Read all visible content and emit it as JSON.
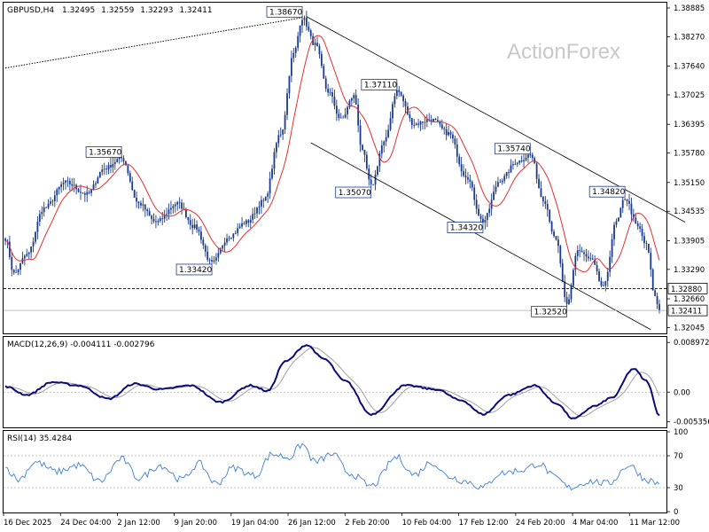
{
  "chart_data": {
    "type": "candlestick",
    "header": {
      "symbol": "GBPUSD,H4",
      "open": "1.32495",
      "high": "1.32559",
      "low": "1.32293",
      "close": "1.32411"
    },
    "watermark": "ActionForex",
    "price_axis": {
      "ticks": [
        "1.38885",
        "1.38270",
        "1.37640",
        "1.37025",
        "1.36395",
        "1.35780",
        "1.35150",
        "1.34535",
        "1.33905",
        "1.33290",
        "1.32660",
        "1.32045"
      ],
      "tick_values": [
        1.38885,
        1.3827,
        1.3764,
        1.37025,
        1.36395,
        1.3578,
        1.3515,
        1.34535,
        1.33905,
        1.3329,
        1.3266,
        1.32045
      ],
      "ylim": [
        1.3192,
        1.3898
      ]
    },
    "time_axis": {
      "labels": [
        "16 Dec 2025",
        "24 Dec 04:00",
        "2 Jan 12:00",
        "9 Jan 20:00",
        "19 Jan 04:00",
        "26 Jan 12:00",
        "2 Feb 20:00",
        "10 Feb 04:00",
        "17 Feb 12:00",
        "24 Feb 20:00",
        "4 Mar 04:00",
        "11 Mar 12:00"
      ]
    },
    "price_series_key_points": [
      {
        "i": 0,
        "v": 1.3395
      },
      {
        "i": 4,
        "v": 1.332
      },
      {
        "i": 10,
        "v": 1.336
      },
      {
        "i": 18,
        "v": 1.346
      },
      {
        "i": 28,
        "v": 1.3515
      },
      {
        "i": 38,
        "v": 1.349
      },
      {
        "i": 46,
        "v": 1.3545
      },
      {
        "i": 54,
        "v": 1.3567
      },
      {
        "i": 62,
        "v": 1.347
      },
      {
        "i": 70,
        "v": 1.343
      },
      {
        "i": 80,
        "v": 1.347
      },
      {
        "i": 88,
        "v": 1.342
      },
      {
        "i": 96,
        "v": 1.3342
      },
      {
        "i": 104,
        "v": 1.34
      },
      {
        "i": 112,
        "v": 1.343
      },
      {
        "i": 120,
        "v": 1.3475
      },
      {
        "i": 128,
        "v": 1.362
      },
      {
        "i": 134,
        "v": 1.379
      },
      {
        "i": 138,
        "v": 1.3867
      },
      {
        "i": 144,
        "v": 1.381
      },
      {
        "i": 150,
        "v": 1.371
      },
      {
        "i": 156,
        "v": 1.365
      },
      {
        "i": 162,
        "v": 1.37
      },
      {
        "i": 166,
        "v": 1.358
      },
      {
        "i": 170,
        "v": 1.3507
      },
      {
        "i": 176,
        "v": 1.36
      },
      {
        "i": 182,
        "v": 1.3711
      },
      {
        "i": 190,
        "v": 1.364
      },
      {
        "i": 198,
        "v": 1.365
      },
      {
        "i": 206,
        "v": 1.362
      },
      {
        "i": 214,
        "v": 1.353
      },
      {
        "i": 222,
        "v": 1.3432
      },
      {
        "i": 230,
        "v": 1.352
      },
      {
        "i": 238,
        "v": 1.356
      },
      {
        "i": 244,
        "v": 1.3574
      },
      {
        "i": 250,
        "v": 1.348
      },
      {
        "i": 256,
        "v": 1.339
      },
      {
        "i": 261,
        "v": 1.3252
      },
      {
        "i": 266,
        "v": 1.337
      },
      {
        "i": 272,
        "v": 1.335
      },
      {
        "i": 278,
        "v": 1.329
      },
      {
        "i": 284,
        "v": 1.343
      },
      {
        "i": 288,
        "v": 1.3482
      },
      {
        "i": 294,
        "v": 1.342
      },
      {
        "i": 298,
        "v": 1.338
      },
      {
        "i": 302,
        "v": 1.327
      },
      {
        "i": 304,
        "v": 1.3241
      }
    ],
    "moving_average_color": "#e03030",
    "candle_color": "#1a3a8c",
    "pivot_labels": [
      {
        "text": "1.38670",
        "i": 138,
        "v": 1.3867,
        "pos": "above"
      },
      {
        "text": "1.35670",
        "i": 54,
        "v": 1.3567,
        "pos": "above"
      },
      {
        "text": "1.37110",
        "i": 182,
        "v": 1.3711,
        "pos": "above"
      },
      {
        "text": "1.35740",
        "i": 244,
        "v": 1.3574,
        "pos": "above"
      },
      {
        "text": "1.34820",
        "i": 288,
        "v": 1.3482,
        "pos": "above"
      },
      {
        "text": "1.33420",
        "i": 96,
        "v": 1.3342,
        "pos": "below"
      },
      {
        "text": "1.35070",
        "i": 170,
        "v": 1.3507,
        "pos": "below"
      },
      {
        "text": "1.34320",
        "i": 222,
        "v": 1.3432,
        "pos": "below"
      },
      {
        "text": "1.32520",
        "i": 261,
        "v": 1.3252,
        "pos": "below"
      }
    ],
    "price_lines": [
      {
        "label": "1.32880",
        "value": 1.3288,
        "style": "dashed"
      },
      {
        "label": "1.32411",
        "value": 1.32411,
        "style": "solid"
      }
    ],
    "channel_lines": [
      {
        "from": {
          "i": 140,
          "v": 1.387
        },
        "to": {
          "i": 316,
          "v": 1.343
        }
      },
      {
        "from": {
          "i": 142,
          "v": 1.36
        },
        "to": {
          "i": 300,
          "v": 1.32
        }
      }
    ],
    "trend_line": {
      "from": {
        "i": 0,
        "v": 1.376
      },
      "to": {
        "i": 138,
        "v": 1.3868
      }
    },
    "macd": {
      "label": "MACD(12,26,9) -0.004111 -0.002796",
      "ticks": [
        "0.008972",
        "0.00",
        "-0.005356"
      ],
      "tick_values": [
        0.008972,
        0.0,
        -0.005356
      ],
      "ylim": [
        -0.0062,
        0.0098
      ],
      "key_points": [
        {
          "i": 0,
          "v": 0.001
        },
        {
          "i": 10,
          "v": -0.0005
        },
        {
          "i": 22,
          "v": 0.0018
        },
        {
          "i": 34,
          "v": 0.0012
        },
        {
          "i": 48,
          "v": -0.0012
        },
        {
          "i": 60,
          "v": 0.0015
        },
        {
          "i": 72,
          "v": 0.0005
        },
        {
          "i": 86,
          "v": 0.0012
        },
        {
          "i": 100,
          "v": -0.0018
        },
        {
          "i": 114,
          "v": 0.0012
        },
        {
          "i": 122,
          "v": 0.0002
        },
        {
          "i": 130,
          "v": 0.0055
        },
        {
          "i": 140,
          "v": 0.0085
        },
        {
          "i": 148,
          "v": 0.006
        },
        {
          "i": 158,
          "v": 0.002
        },
        {
          "i": 170,
          "v": -0.004
        },
        {
          "i": 186,
          "v": 0.0012
        },
        {
          "i": 200,
          "v": 0.0005
        },
        {
          "i": 212,
          "v": -0.0015
        },
        {
          "i": 222,
          "v": -0.004
        },
        {
          "i": 234,
          "v": -0.0005
        },
        {
          "i": 246,
          "v": 0.0012
        },
        {
          "i": 256,
          "v": -0.002
        },
        {
          "i": 264,
          "v": -0.0048
        },
        {
          "i": 274,
          "v": -0.0025
        },
        {
          "i": 282,
          "v": -0.001
        },
        {
          "i": 292,
          "v": 0.0042
        },
        {
          "i": 298,
          "v": 0.002
        },
        {
          "i": 304,
          "v": -0.0041
        }
      ],
      "macd_color": "#0a0a7a",
      "signal_color": "#a0a0a0"
    },
    "rsi": {
      "label": "RSI(14) 35.4284",
      "ticks": [
        "100",
        "70",
        "30",
        "0"
      ],
      "tick_values": [
        100,
        70,
        30,
        0
      ],
      "ylim": [
        0,
        100
      ],
      "levels": [
        70,
        30
      ],
      "key_points": [
        {
          "i": 0,
          "v": 55
        },
        {
          "i": 6,
          "v": 40
        },
        {
          "i": 14,
          "v": 62
        },
        {
          "i": 24,
          "v": 50
        },
        {
          "i": 34,
          "v": 58
        },
        {
          "i": 44,
          "v": 38
        },
        {
          "i": 54,
          "v": 66
        },
        {
          "i": 62,
          "v": 42
        },
        {
          "i": 72,
          "v": 58
        },
        {
          "i": 82,
          "v": 40
        },
        {
          "i": 90,
          "v": 60
        },
        {
          "i": 98,
          "v": 35
        },
        {
          "i": 106,
          "v": 55
        },
        {
          "i": 116,
          "v": 45
        },
        {
          "i": 124,
          "v": 72
        },
        {
          "i": 132,
          "v": 68
        },
        {
          "i": 138,
          "v": 84
        },
        {
          "i": 144,
          "v": 62
        },
        {
          "i": 152,
          "v": 72
        },
        {
          "i": 160,
          "v": 48
        },
        {
          "i": 170,
          "v": 32
        },
        {
          "i": 182,
          "v": 68
        },
        {
          "i": 190,
          "v": 46
        },
        {
          "i": 198,
          "v": 62
        },
        {
          "i": 206,
          "v": 44
        },
        {
          "i": 214,
          "v": 38
        },
        {
          "i": 222,
          "v": 30
        },
        {
          "i": 230,
          "v": 48
        },
        {
          "i": 240,
          "v": 52
        },
        {
          "i": 248,
          "v": 60
        },
        {
          "i": 256,
          "v": 42
        },
        {
          "i": 262,
          "v": 30
        },
        {
          "i": 272,
          "v": 38
        },
        {
          "i": 280,
          "v": 35
        },
        {
          "i": 290,
          "v": 58
        },
        {
          "i": 298,
          "v": 40
        },
        {
          "i": 304,
          "v": 35
        }
      ],
      "color": "#3a7ed8"
    }
  }
}
